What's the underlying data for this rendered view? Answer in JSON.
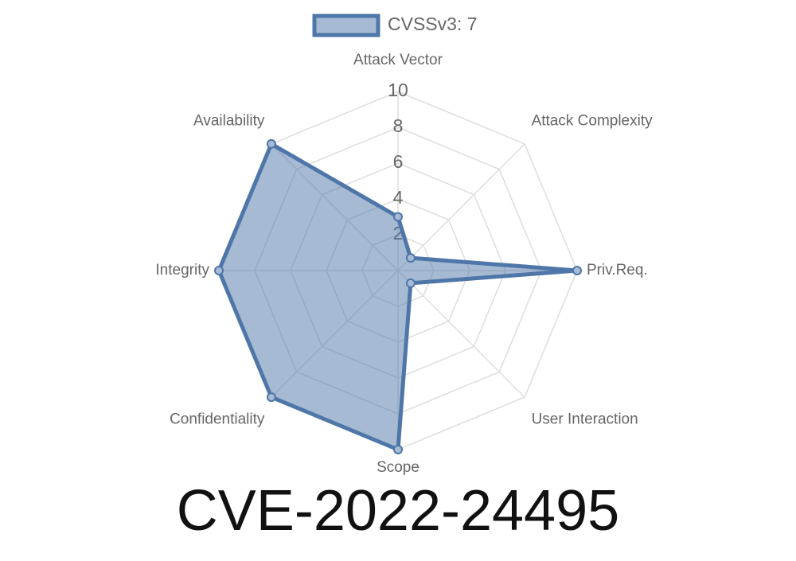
{
  "chart_data": {
    "type": "radar",
    "title": "CVE-2022-24495",
    "categories": [
      "Attack Vector",
      "Attack Complexity",
      "Priv.Req.",
      "User Interaction",
      "Scope",
      "Confidentiality",
      "Integrity",
      "Availability"
    ],
    "series": [
      {
        "name": "CVSSv3: 7",
        "color": "#4e76a8",
        "values": [
          3,
          1,
          10,
          1,
          10,
          10,
          10,
          10
        ]
      }
    ],
    "rlim": [
      0,
      10
    ],
    "rticks": [
      2,
      4,
      6,
      8,
      10
    ],
    "grid": true,
    "legend": "top"
  }
}
